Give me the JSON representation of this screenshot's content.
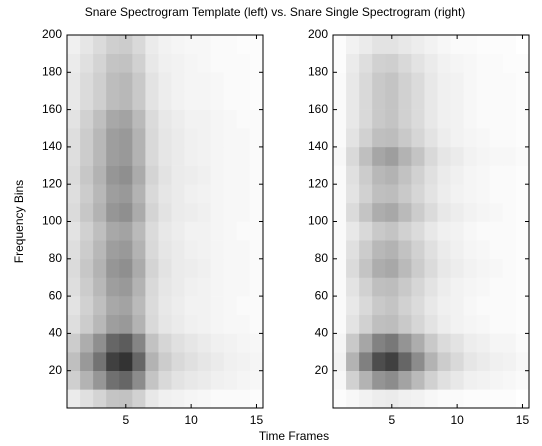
{
  "suptitle": "Snare Spectrogram Template (left) vs. Snare Single Spectrogram (right)",
  "supxlabel": "Time Frames",
  "chart_data": [
    {
      "type": "heatmap",
      "ylabel": "Frequency Bins",
      "colormap": "gray_r",
      "x": [
        1,
        2,
        3,
        4,
        5,
        6,
        7,
        8,
        9,
        10,
        11,
        12,
        13,
        14,
        15
      ],
      "y_bins": [
        0,
        10,
        20,
        30,
        40,
        50,
        60,
        70,
        80,
        90,
        100,
        110,
        120,
        130,
        140,
        150,
        160,
        170,
        180,
        190,
        200
      ],
      "xlim": [
        0.5,
        15.5
      ],
      "ylim": [
        0,
        200
      ],
      "xticks": [
        5,
        10,
        15
      ],
      "yticks": [
        20,
        40,
        60,
        80,
        100,
        120,
        140,
        160,
        180,
        200
      ],
      "z": [
        [
          0.08,
          0.12,
          0.17,
          0.23,
          0.24,
          0.18,
          0.09,
          0.06,
          0.05,
          0.04,
          0.03,
          0.02,
          0.02,
          0.02,
          0.01
        ],
        [
          0.19,
          0.3,
          0.41,
          0.56,
          0.6,
          0.45,
          0.23,
          0.15,
          0.11,
          0.09,
          0.08,
          0.06,
          0.05,
          0.04,
          0.03
        ],
        [
          0.25,
          0.4,
          0.55,
          0.75,
          0.8,
          0.6,
          0.3,
          0.2,
          0.15,
          0.12,
          0.1,
          0.08,
          0.06,
          0.05,
          0.04
        ],
        [
          0.2,
          0.32,
          0.44,
          0.6,
          0.64,
          0.48,
          0.24,
          0.16,
          0.12,
          0.1,
          0.08,
          0.06,
          0.05,
          0.04,
          0.03
        ],
        [
          0.13,
          0.2,
          0.28,
          0.38,
          0.4,
          0.3,
          0.15,
          0.1,
          0.08,
          0.06,
          0.05,
          0.04,
          0.03,
          0.03,
          0.02
        ],
        [
          0.11,
          0.18,
          0.25,
          0.34,
          0.36,
          0.27,
          0.14,
          0.09,
          0.07,
          0.05,
          0.05,
          0.04,
          0.03,
          0.02,
          0.02
        ],
        [
          0.13,
          0.2,
          0.28,
          0.38,
          0.4,
          0.3,
          0.15,
          0.1,
          0.08,
          0.06,
          0.05,
          0.04,
          0.03,
          0.03,
          0.02
        ],
        [
          0.14,
          0.22,
          0.3,
          0.41,
          0.44,
          0.33,
          0.17,
          0.11,
          0.08,
          0.07,
          0.06,
          0.04,
          0.03,
          0.03,
          0.02
        ],
        [
          0.13,
          0.2,
          0.28,
          0.38,
          0.4,
          0.3,
          0.15,
          0.1,
          0.08,
          0.06,
          0.05,
          0.04,
          0.03,
          0.03,
          0.02
        ],
        [
          0.11,
          0.18,
          0.25,
          0.34,
          0.36,
          0.27,
          0.14,
          0.09,
          0.07,
          0.05,
          0.05,
          0.04,
          0.03,
          0.02,
          0.02
        ],
        [
          0.14,
          0.22,
          0.3,
          0.41,
          0.44,
          0.33,
          0.17,
          0.11,
          0.08,
          0.07,
          0.06,
          0.04,
          0.03,
          0.03,
          0.02
        ],
        [
          0.13,
          0.2,
          0.28,
          0.38,
          0.4,
          0.3,
          0.15,
          0.1,
          0.08,
          0.06,
          0.05,
          0.04,
          0.03,
          0.03,
          0.02
        ],
        [
          0.14,
          0.22,
          0.3,
          0.41,
          0.44,
          0.33,
          0.17,
          0.11,
          0.08,
          0.07,
          0.06,
          0.04,
          0.03,
          0.03,
          0.02
        ],
        [
          0.13,
          0.2,
          0.28,
          0.38,
          0.4,
          0.3,
          0.15,
          0.1,
          0.08,
          0.06,
          0.05,
          0.04,
          0.03,
          0.03,
          0.02
        ],
        [
          0.13,
          0.2,
          0.28,
          0.38,
          0.4,
          0.3,
          0.15,
          0.1,
          0.08,
          0.06,
          0.05,
          0.04,
          0.03,
          0.03,
          0.02
        ],
        [
          0.11,
          0.18,
          0.25,
          0.34,
          0.36,
          0.27,
          0.14,
          0.09,
          0.07,
          0.05,
          0.05,
          0.04,
          0.03,
          0.02,
          0.02
        ],
        [
          0.09,
          0.14,
          0.19,
          0.26,
          0.28,
          0.21,
          0.11,
          0.07,
          0.05,
          0.04,
          0.04,
          0.03,
          0.02,
          0.02,
          0.01
        ],
        [
          0.09,
          0.14,
          0.19,
          0.26,
          0.28,
          0.21,
          0.11,
          0.07,
          0.05,
          0.04,
          0.04,
          0.03,
          0.02,
          0.02,
          0.01
        ],
        [
          0.08,
          0.12,
          0.17,
          0.23,
          0.24,
          0.18,
          0.09,
          0.06,
          0.05,
          0.04,
          0.03,
          0.02,
          0.02,
          0.02,
          0.01
        ],
        [
          0.06,
          0.1,
          0.14,
          0.19,
          0.2,
          0.15,
          0.08,
          0.05,
          0.04,
          0.03,
          0.03,
          0.02,
          0.02,
          0.01,
          0.01
        ]
      ]
    },
    {
      "type": "heatmap",
      "colormap": "gray_r",
      "x": [
        1,
        2,
        3,
        4,
        5,
        6,
        7,
        8,
        9,
        10,
        11,
        12,
        13,
        14,
        15
      ],
      "y_bins": [
        0,
        10,
        20,
        30,
        40,
        50,
        60,
        70,
        80,
        90,
        100,
        110,
        120,
        130,
        140,
        150,
        160,
        170,
        180,
        190,
        200
      ],
      "xlim": [
        0.5,
        15.5
      ],
      "ylim": [
        0,
        200
      ],
      "xticks": [
        5,
        10,
        15
      ],
      "yticks": [
        20,
        40,
        60,
        80,
        100,
        120,
        140,
        160,
        180,
        200
      ],
      "z": [
        [
          0.01,
          0.03,
          0.05,
          0.07,
          0.08,
          0.06,
          0.05,
          0.03,
          0.02,
          0.02,
          0.01,
          0.01,
          0.01,
          0.01,
          0
        ],
        [
          0.03,
          0.18,
          0.3,
          0.42,
          0.45,
          0.36,
          0.27,
          0.18,
          0.12,
          0.09,
          0.06,
          0.05,
          0.04,
          0.03,
          0.02
        ],
        [
          0.05,
          0.3,
          0.5,
          0.7,
          0.75,
          0.6,
          0.45,
          0.3,
          0.2,
          0.15,
          0.1,
          0.08,
          0.06,
          0.05,
          0.03
        ],
        [
          0.04,
          0.21,
          0.35,
          0.49,
          0.53,
          0.42,
          0.32,
          0.21,
          0.14,
          0.11,
          0.07,
          0.06,
          0.04,
          0.04,
          0.02
        ],
        [
          0.02,
          0.11,
          0.18,
          0.25,
          0.26,
          0.21,
          0.16,
          0.11,
          0.07,
          0.05,
          0.04,
          0.03,
          0.02,
          0.02,
          0.01
        ],
        [
          0.02,
          0.09,
          0.15,
          0.21,
          0.23,
          0.18,
          0.14,
          0.09,
          0.06,
          0.05,
          0.03,
          0.02,
          0.02,
          0.02,
          0.01
        ],
        [
          0.02,
          0.11,
          0.18,
          0.25,
          0.26,
          0.21,
          0.16,
          0.11,
          0.07,
          0.05,
          0.04,
          0.03,
          0.02,
          0.02,
          0.01
        ],
        [
          0.02,
          0.14,
          0.23,
          0.32,
          0.34,
          0.27,
          0.2,
          0.14,
          0.09,
          0.07,
          0.05,
          0.04,
          0.03,
          0.02,
          0.01
        ],
        [
          0.02,
          0.12,
          0.2,
          0.28,
          0.3,
          0.24,
          0.18,
          0.12,
          0.08,
          0.06,
          0.04,
          0.03,
          0.02,
          0.02,
          0.01
        ],
        [
          0.02,
          0.09,
          0.15,
          0.21,
          0.23,
          0.18,
          0.14,
          0.09,
          0.06,
          0.05,
          0.03,
          0.02,
          0.02,
          0.02,
          0.01
        ],
        [
          0.02,
          0.14,
          0.23,
          0.32,
          0.34,
          0.27,
          0.2,
          0.14,
          0.09,
          0.07,
          0.05,
          0.04,
          0.03,
          0.02,
          0.01
        ],
        [
          0.02,
          0.11,
          0.18,
          0.25,
          0.26,
          0.21,
          0.16,
          0.11,
          0.07,
          0.05,
          0.04,
          0.03,
          0.02,
          0.02,
          0.01
        ],
        [
          0.02,
          0.12,
          0.2,
          0.28,
          0.3,
          0.24,
          0.18,
          0.12,
          0.08,
          0.06,
          0.04,
          0.03,
          0.02,
          0.02,
          0.01
        ],
        [
          0.03,
          0.15,
          0.25,
          0.35,
          0.38,
          0.3,
          0.23,
          0.15,
          0.1,
          0.08,
          0.05,
          0.04,
          0.03,
          0.03,
          0.02
        ],
        [
          0.02,
          0.11,
          0.18,
          0.25,
          0.26,
          0.21,
          0.16,
          0.11,
          0.07,
          0.05,
          0.04,
          0.03,
          0.02,
          0.02,
          0.01
        ],
        [
          0.02,
          0.09,
          0.15,
          0.21,
          0.23,
          0.18,
          0.14,
          0.09,
          0.06,
          0.05,
          0.03,
          0.02,
          0.02,
          0.02,
          0.01
        ],
        [
          0.02,
          0.09,
          0.15,
          0.21,
          0.23,
          0.18,
          0.14,
          0.09,
          0.06,
          0.05,
          0.03,
          0.02,
          0.02,
          0.02,
          0.01
        ],
        [
          0.02,
          0.09,
          0.15,
          0.21,
          0.23,
          0.18,
          0.14,
          0.09,
          0.06,
          0.05,
          0.03,
          0.02,
          0.02,
          0.02,
          0.01
        ],
        [
          0.01,
          0.08,
          0.13,
          0.18,
          0.19,
          0.15,
          0.11,
          0.08,
          0.05,
          0.04,
          0.03,
          0.02,
          0.02,
          0.01,
          0.01
        ],
        [
          0.01,
          0.05,
          0.08,
          0.11,
          0.11,
          0.09,
          0.07,
          0.05,
          0.03,
          0.02,
          0.02,
          0.01,
          0.01,
          0.01,
          0
        ]
      ]
    }
  ]
}
